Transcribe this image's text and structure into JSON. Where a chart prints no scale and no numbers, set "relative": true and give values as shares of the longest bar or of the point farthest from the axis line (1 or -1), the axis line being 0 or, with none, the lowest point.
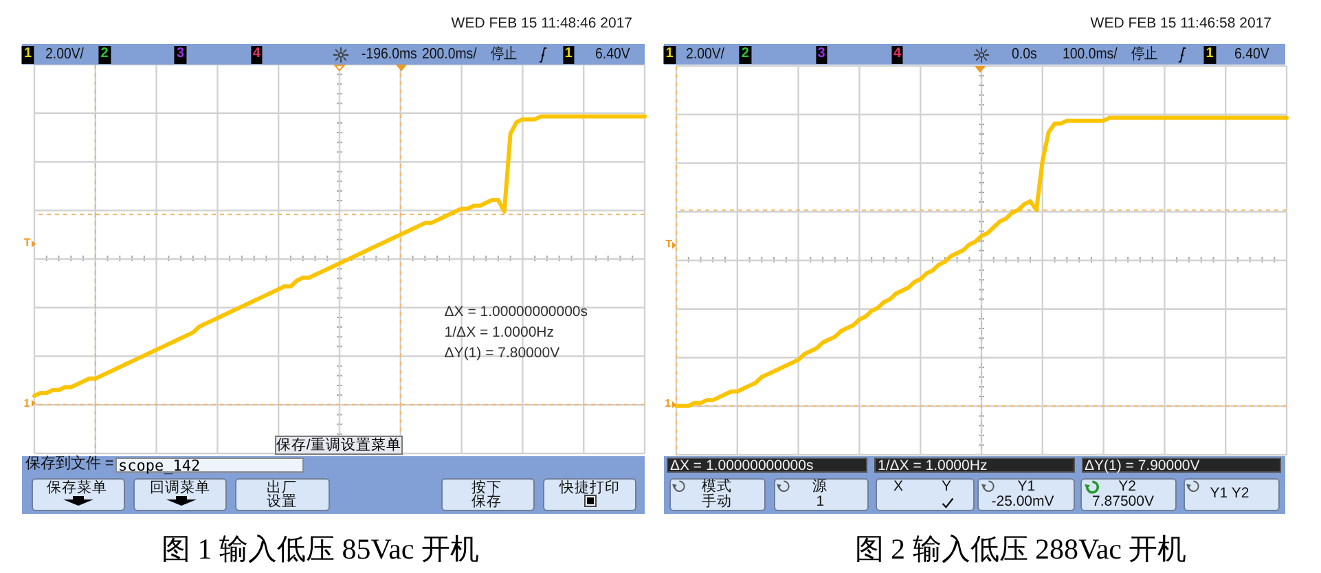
{
  "chart_data": [
    {
      "type": "line",
      "title": "图 1 输入低压 85Vac 开机",
      "relative": true,
      "grid": true,
      "categories": [
        null,
        null,
        null,
        null,
        null,
        null,
        null,
        null,
        null,
        null,
        null,
        null,
        null,
        null,
        null,
        null,
        null,
        null,
        null,
        null,
        null,
        null,
        null,
        null,
        null,
        null,
        null,
        null,
        null,
        null,
        null,
        null,
        null,
        null,
        null,
        null,
        null,
        null,
        null,
        null,
        null,
        null,
        null,
        null,
        null,
        null,
        null,
        null,
        null,
        null,
        null,
        null,
        null,
        null,
        null,
        null,
        null,
        null,
        null,
        null,
        null,
        null,
        null,
        null,
        null,
        null,
        null,
        null,
        null,
        null,
        null,
        null,
        null,
        null,
        null,
        null,
        null,
        null,
        null,
        null,
        null,
        null,
        null,
        null,
        null,
        null,
        null,
        null,
        null,
        null,
        null,
        null,
        null,
        null,
        null,
        null,
        null,
        null,
        null,
        null,
        null
      ],
      "series": [
        {
          "color": "#fbc400",
          "values": [
            0.03,
            0.04,
            0.04,
            0.05,
            0.05,
            0.06,
            0.06,
            0.07,
            0.08,
            0.09,
            0.09,
            0.1,
            0.11,
            0.12,
            0.13,
            0.14,
            0.15,
            0.16,
            0.17,
            0.18,
            0.19,
            0.2,
            0.21,
            0.22,
            0.23,
            0.24,
            0.25,
            0.27,
            0.28,
            0.29,
            0.3,
            0.31,
            0.32,
            0.33,
            0.34,
            0.35,
            0.36,
            0.37,
            0.38,
            0.39,
            0.4,
            0.41,
            0.41,
            0.43,
            0.44,
            0.44,
            0.45,
            0.46,
            0.47,
            0.48,
            0.49,
            0.5,
            0.51,
            0.52,
            0.53,
            0.54,
            0.55,
            0.56,
            0.57,
            0.58,
            0.59,
            0.6,
            0.61,
            0.62,
            0.63,
            0.63,
            0.64,
            0.65,
            0.66,
            0.67,
            0.68,
            0.68,
            0.69,
            0.69,
            0.7,
            0.71,
            0.71,
            0.67,
            0.94,
            0.98,
            0.99,
            0.99,
            0.99,
            1,
            1,
            1,
            1,
            1,
            1,
            1,
            1,
            1,
            1,
            1,
            1,
            1,
            1,
            1,
            1,
            1,
            1
          ]
        }
      ],
      "ref_lines": [
        {
          "axis": "y",
          "value": 0.66,
          "color": "#f5b66a",
          "line_style": "dashed"
        }
      ],
      "annotations": [
        "WED FEB 15 11:48:46 2017",
        "1",
        "2.00V/",
        "2",
        "3",
        "4",
        "-196.0ms",
        "200.0ms/",
        "停止",
        "1",
        "6.40V",
        "T",
        "1",
        "ΔX = 1.00000000000s",
        "1/ΔX = 1.0000Hz",
        "ΔY(1) = 7.80000V",
        "保存/重调设置菜单",
        "保存到文件 =",
        "scope_142",
        "保存菜单",
        "回调菜单",
        "出厂",
        "设置",
        "按下",
        "保存",
        "快捷打印"
      ]
    },
    {
      "type": "line",
      "title": "图 2 输入低压 288Vac 开机",
      "relative": true,
      "grid": true,
      "categories": [
        null,
        null,
        null,
        null,
        null,
        null,
        null,
        null,
        null,
        null,
        null,
        null,
        null,
        null,
        null,
        null,
        null,
        null,
        null,
        null,
        null,
        null,
        null,
        null,
        null,
        null,
        null,
        null,
        null,
        null,
        null,
        null,
        null,
        null,
        null,
        null,
        null,
        null,
        null,
        null,
        null,
        null,
        null,
        null,
        null,
        null,
        null,
        null,
        null,
        null,
        null,
        null,
        null,
        null,
        null,
        null,
        null,
        null,
        null,
        null,
        null,
        null,
        null,
        null,
        null,
        null,
        null,
        null,
        null,
        null,
        null,
        null,
        null,
        null,
        null,
        null,
        null,
        null,
        null,
        null,
        null,
        null,
        null,
        null,
        null,
        null,
        null,
        null,
        null,
        null,
        null,
        null,
        null,
        null,
        null,
        null,
        null,
        null,
        null,
        null,
        null
      ],
      "series": [
        {
          "color": "#fbc400",
          "values": [
            0,
            0,
            0,
            0.01,
            0.01,
            0.02,
            0.02,
            0.03,
            0.04,
            0.05,
            0.05,
            0.06,
            0.07,
            0.08,
            0.1,
            0.11,
            0.12,
            0.13,
            0.14,
            0.15,
            0.16,
            0.18,
            0.19,
            0.2,
            0.22,
            0.23,
            0.24,
            0.26,
            0.27,
            0.28,
            0.3,
            0.31,
            0.33,
            0.34,
            0.36,
            0.37,
            0.39,
            0.4,
            0.41,
            0.43,
            0.44,
            0.46,
            0.47,
            0.49,
            0.5,
            0.52,
            0.53,
            0.54,
            0.56,
            0.57,
            0.59,
            0.6,
            0.62,
            0.64,
            0.65,
            0.67,
            0.68,
            0.7,
            0.71,
            0.68,
            0.85,
            0.95,
            0.98,
            0.98,
            0.99,
            0.99,
            0.99,
            0.99,
            0.99,
            0.99,
            0.99,
            1,
            1,
            1,
            1,
            1,
            1,
            1,
            1,
            1,
            1,
            1,
            1,
            1,
            1,
            1,
            1,
            1,
            1,
            1,
            1,
            1,
            1,
            1,
            1,
            1,
            1,
            1,
            1,
            1,
            1
          ]
        }
      ],
      "ref_lines": [
        {
          "axis": "y",
          "value": 0.68,
          "color": "#f5b66a",
          "line_style": "dashed"
        }
      ],
      "annotations": [
        "WED FEB 15 11:46:58 2017",
        "1",
        "2.00V/",
        "2",
        "3",
        "4",
        "0.0s",
        "100.0ms/",
        "停止",
        "1",
        "6.40V",
        "T",
        "1",
        "ΔX = 1.00000000000s",
        "1/ΔX = 1.0000Hz",
        "ΔY(1) = 7.90000V",
        "模式",
        "手动",
        "源",
        "1",
        "X",
        "Y",
        "Y1",
        "-25.00mV",
        "Y2",
        "7.87500V",
        "Y1 Y2"
      ]
    }
  ]
}
